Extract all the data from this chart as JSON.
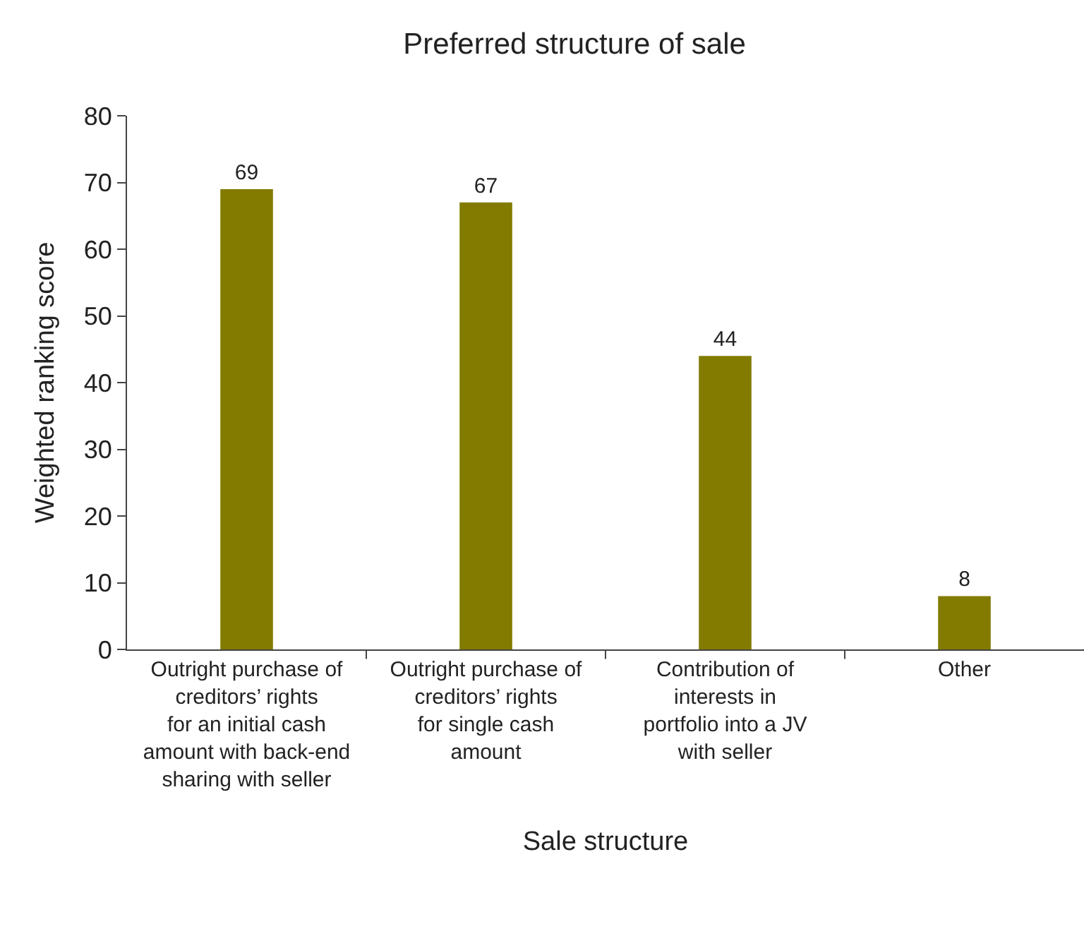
{
  "chart_data": {
    "type": "bar",
    "title": "Preferred structure of sale",
    "xlabel": "Sale structure",
    "ylabel": "Weighted ranking score",
    "categories": [
      "Outright purchase of creditors’ rights for an initial cash amount with back-end sharing with seller",
      "Outright purchase of creditors’ rights for single cash amount",
      "Contribution of interests in portfolio into a JV with seller",
      "Other"
    ],
    "values": [
      69,
      67,
      44,
      8
    ],
    "color": "#827b00",
    "ylim": [
      0,
      80
    ],
    "yticks": [
      0,
      10,
      20,
      30,
      40,
      50,
      60,
      70,
      80
    ],
    "data_labels": true
  }
}
